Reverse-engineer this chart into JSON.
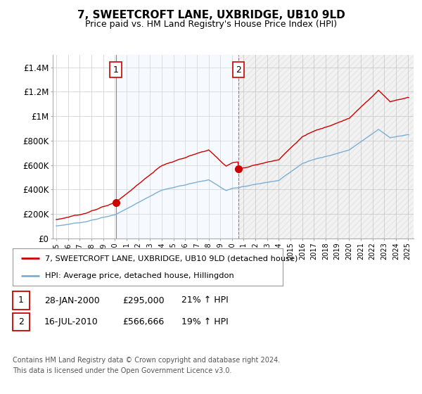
{
  "title": "7, SWEETCROFT LANE, UXBRIDGE, UB10 9LD",
  "subtitle": "Price paid vs. HM Land Registry's House Price Index (HPI)",
  "sale1_date": 2000.08,
  "sale1_price": 295000,
  "sale1_label": "1",
  "sale2_date": 2010.54,
  "sale2_price": 566666,
  "sale2_label": "2",
  "legend_red": "7, SWEETCROFT LANE, UXBRIDGE, UB10 9LD (detached house)",
  "legend_blue": "HPI: Average price, detached house, Hillingdon",
  "table_row1": [
    "1",
    "28-JAN-2000",
    "£295,000",
    "21% ↑ HPI"
  ],
  "table_row2": [
    "2",
    "16-JUL-2010",
    "£566,666",
    "19% ↑ HPI"
  ],
  "footnote1": "Contains HM Land Registry data © Crown copyright and database right 2024.",
  "footnote2": "This data is licensed under the Open Government Licence v3.0.",
  "red_color": "#cc0000",
  "blue_color": "#7bafd4",
  "shade_color": "#ddeeff",
  "hatch_color": "#cccccc",
  "background": "#ffffff",
  "grid_color": "#cccccc",
  "ylim": [
    0,
    1500000
  ],
  "yticks": [
    0,
    200000,
    400000,
    600000,
    800000,
    1000000,
    1200000,
    1400000
  ],
  "ytick_labels": [
    "£0",
    "£200K",
    "£400K",
    "£600K",
    "£800K",
    "£1M",
    "£1.2M",
    "£1.4M"
  ],
  "xmin": 1994.7,
  "xmax": 2025.5
}
